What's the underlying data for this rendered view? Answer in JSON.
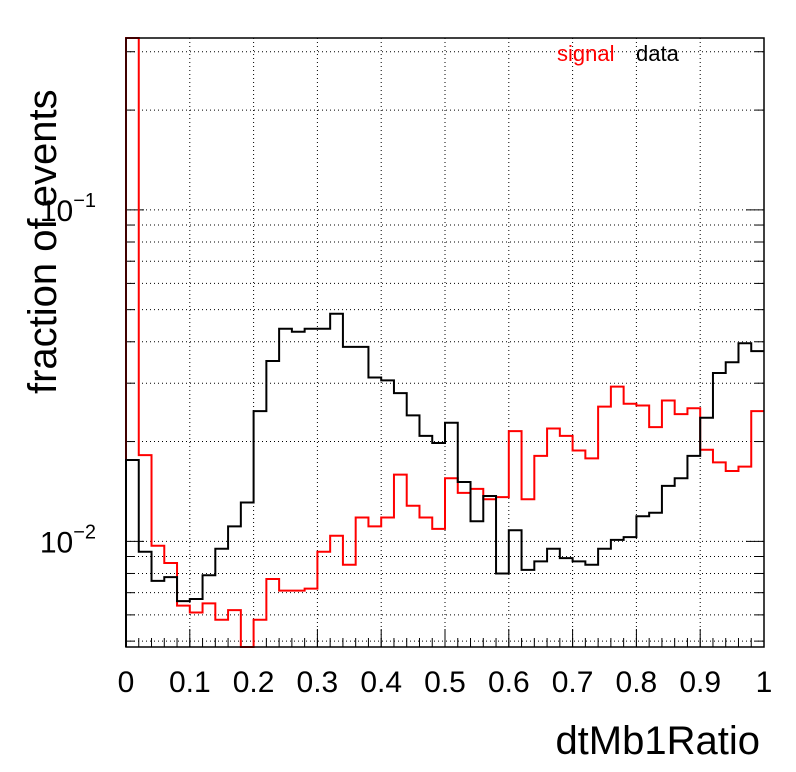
{
  "chart_data": {
    "type": "line",
    "title": "",
    "xlabel": "dtMb1Ratio",
    "ylabel": "fraction of events",
    "xlim": [
      0,
      1
    ],
    "ylim": [
      0.0048,
      0.33
    ],
    "y_scale": "log",
    "grid": true,
    "legend_placement": "top-right",
    "x_ticks": [
      "0",
      "0.1",
      "0.2",
      "0.3",
      "0.4",
      "0.5",
      "0.6",
      "0.7",
      "0.8",
      "0.9",
      "1"
    ],
    "y_ticks": [
      {
        "value": 0.1,
        "base": "10",
        "exp": "−1"
      },
      {
        "value": 0.01,
        "base": "10",
        "exp": "−2"
      }
    ],
    "bin_edges": [
      0,
      0.02,
      0.04,
      0.06,
      0.08,
      0.1,
      0.12,
      0.14,
      0.16,
      0.18,
      0.2,
      0.22,
      0.24,
      0.26,
      0.28,
      0.3,
      0.32,
      0.34,
      0.36,
      0.38,
      0.4,
      0.42,
      0.44,
      0.46,
      0.48,
      0.5,
      0.52,
      0.54,
      0.56,
      0.58,
      0.6,
      0.62,
      0.64,
      0.66,
      0.68,
      0.7,
      0.72,
      0.74,
      0.76,
      0.78,
      0.8,
      0.82,
      0.84,
      0.86,
      0.88,
      0.9,
      0.92,
      0.94,
      0.96,
      0.98,
      1.0
    ],
    "series": [
      {
        "name": "signal",
        "color": "#ff0000",
        "values": [
          0.33,
          0.0182,
          0.0097,
          0.0086,
          0.0064,
          0.0061,
          0.0065,
          0.0058,
          0.0062,
          0.0048,
          0.0058,
          0.0077,
          0.0071,
          0.0071,
          0.0072,
          0.0093,
          0.0104,
          0.0085,
          0.0118,
          0.0111,
          0.0118,
          0.0159,
          0.0128,
          0.0118,
          0.0109,
          0.0155,
          0.014,
          0.0144,
          0.0134,
          0.0136,
          0.0215,
          0.0134,
          0.0181,
          0.0219,
          0.0208,
          0.0188,
          0.0178,
          0.0255,
          0.0293,
          0.026,
          0.0257,
          0.0221,
          0.0266,
          0.0242,
          0.0252,
          0.0189,
          0.0173,
          0.0163,
          0.0168,
          0.0247
        ]
      },
      {
        "name": "data",
        "color": "#000000",
        "values": [
          0.0176,
          0.0093,
          0.0076,
          0.0078,
          0.0066,
          0.0067,
          0.0079,
          0.0095,
          0.0111,
          0.0131,
          0.0247,
          0.035,
          0.0438,
          0.0429,
          0.0438,
          0.0438,
          0.0486,
          0.0386,
          0.0386,
          0.0312,
          0.0306,
          0.028,
          0.024,
          0.0208,
          0.0198,
          0.0228,
          0.0151,
          0.0115,
          0.0137,
          0.008,
          0.0108,
          0.0082,
          0.0087,
          0.0095,
          0.0089,
          0.0087,
          0.0085,
          0.0095,
          0.0101,
          0.0103,
          0.0119,
          0.0122,
          0.0147,
          0.0155,
          0.0181,
          0.0236,
          0.0322,
          0.0347,
          0.0396,
          0.0375
        ]
      }
    ]
  }
}
